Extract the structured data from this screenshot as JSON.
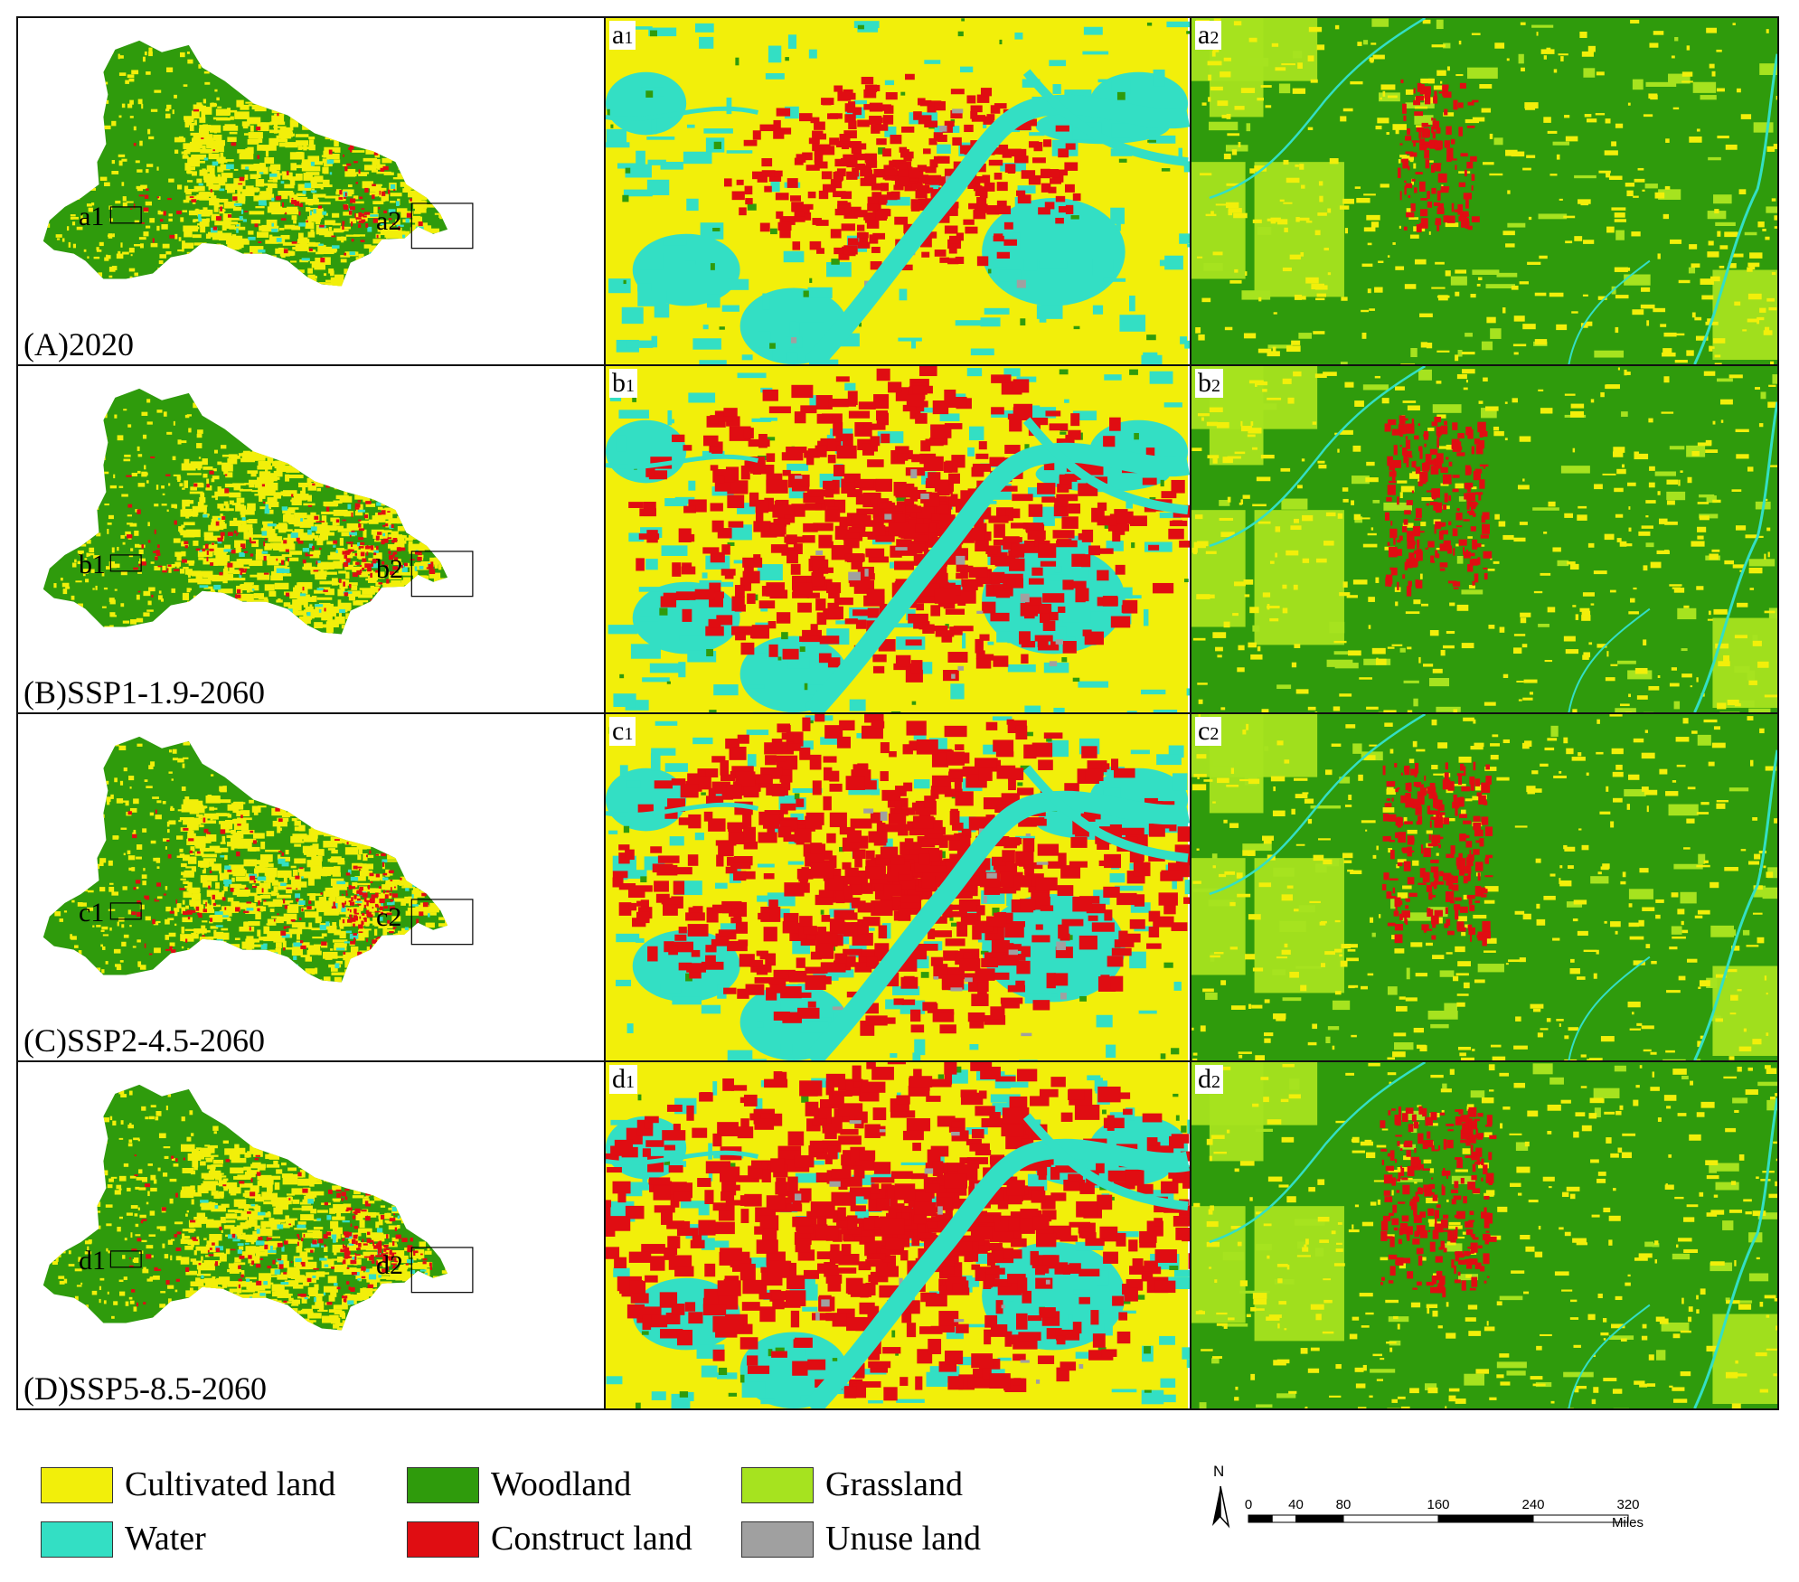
{
  "colors": {
    "cultivated": "#f2ef0a",
    "woodland": "#2f9b0c",
    "grassland": "#a6e31f",
    "water": "#33dfc4",
    "construct": "#e00d12",
    "unuse": "#a0a0a0"
  },
  "rows": [
    {
      "overview_label": "(A)2020",
      "box1_label": "a1",
      "box2_label": "a2",
      "zoom1_letter": "a",
      "zoom1_sub": "1",
      "zoom2_letter": "a",
      "zoom2_sub": "2",
      "urban_level": 0.35
    },
    {
      "overview_label": "(B)SSP1-1.9-2060",
      "box1_label": "b1",
      "box2_label": "b2",
      "zoom1_letter": "b",
      "zoom1_sub": "1",
      "zoom2_letter": "b",
      "zoom2_sub": "2",
      "urban_level": 0.75
    },
    {
      "overview_label": "(C)SSP2-4.5-2060",
      "box1_label": "c1",
      "box2_label": "c2",
      "zoom1_letter": "c",
      "zoom1_sub": "1",
      "zoom2_letter": "c",
      "zoom2_sub": "2",
      "urban_level": 0.8
    },
    {
      "overview_label": "(D)SSP5-8.5-2060",
      "box1_label": "d1",
      "box2_label": "d2",
      "zoom1_letter": "d",
      "zoom1_sub": "1",
      "zoom2_letter": "d",
      "zoom2_sub": "2",
      "urban_level": 0.9
    }
  ],
  "legend": [
    {
      "label": "Cultivated land",
      "color_key": "cultivated"
    },
    {
      "label": "Woodland",
      "color_key": "woodland"
    },
    {
      "label": "Grassland",
      "color_key": "grassland"
    },
    {
      "label": "Water",
      "color_key": "water"
    },
    {
      "label": "Construct land",
      "color_key": "construct"
    },
    {
      "label": "Unuse land",
      "color_key": "unuse"
    }
  ],
  "scale_bar": {
    "north_label": "N",
    "ticks": [
      "0",
      "40",
      "80",
      "160",
      "240",
      "320"
    ],
    "unit": "Miles"
  }
}
